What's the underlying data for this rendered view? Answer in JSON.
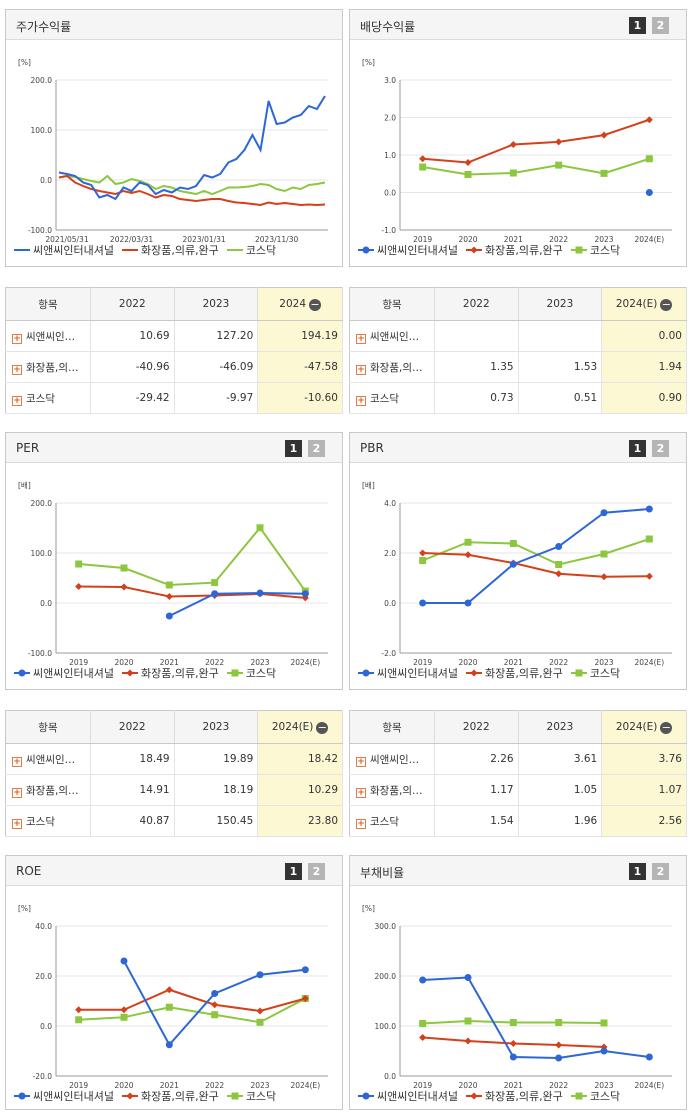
{
  "colors": {
    "c1": "#2d67d6",
    "c2": "#d4401a",
    "c3": "#8dc63f"
  },
  "legend": {
    "s1": "씨앤씨인터내셔널",
    "s2": "화장품,의류,완구",
    "s3": "코스닥"
  },
  "charts": {
    "stock": {
      "title": "주가수익률",
      "unit": "[%]",
      "chart_data": {
        "type": "line",
        "title": "주가수익률",
        "ylim": [
          -100,
          200
        ],
        "yticks": [
          "200.0",
          "100.0",
          "0.0",
          "-100.0"
        ],
        "xticks": [
          "2021/05/31",
          "2022/03/31",
          "2023/01/31",
          "2023/11/30"
        ],
        "series": [
          {
            "name": "씨앤씨인터내셔널",
            "values": [
              15,
              12,
              8,
              -5,
              -10,
              -35,
              -30,
              -38,
              -15,
              -22,
              -5,
              -10,
              -28,
              -20,
              -25,
              -15,
              -18,
              -12,
              10,
              5,
              12,
              35,
              42,
              60,
              90,
              60,
              158,
              112,
              115,
              125,
              130,
              148,
              142,
              168
            ]
          },
          {
            "name": "화장품,의류,완구",
            "values": [
              5,
              8,
              -5,
              -12,
              -18,
              -22,
              -25,
              -28,
              -22,
              -26,
              -22,
              -28,
              -35,
              -30,
              -32,
              -38,
              -40,
              -42,
              -40,
              -38,
              -38,
              -42,
              -45,
              -46,
              -48,
              -50,
              -45,
              -48,
              -46,
              -48,
              -50,
              -49,
              -50,
              -49
            ]
          },
          {
            "name": "코스닥",
            "values": [
              5,
              8,
              6,
              2,
              -2,
              -5,
              8,
              -8,
              -5,
              2,
              -2,
              -8,
              -18,
              -12,
              -15,
              -22,
              -25,
              -28,
              -22,
              -28,
              -22,
              -15,
              -15,
              -14,
              -12,
              -8,
              -10,
              -18,
              -22,
              -15,
              -18,
              -10,
              -8,
              -5
            ]
          }
        ]
      }
    },
    "dividend": {
      "title": "배당수익률",
      "unit": "[%]",
      "pages": [
        "1",
        "2"
      ],
      "chart_data": {
        "type": "line",
        "title": "배당수익률",
        "categories": [
          "2019",
          "2020",
          "2021",
          "2022",
          "2023",
          "2024(E)"
        ],
        "ylim": [
          -1.0,
          3.0
        ],
        "yticks": [
          "3.0",
          "2.0",
          "1.0",
          "0.0",
          "-1.0"
        ],
        "series": [
          {
            "name": "씨앤씨인터내셔널",
            "values": [
              null,
              null,
              null,
              null,
              null,
              0.0
            ]
          },
          {
            "name": "화장품,의류,완구",
            "values": [
              0.9,
              0.8,
              1.28,
              1.35,
              1.53,
              1.94
            ]
          },
          {
            "name": "코스닥",
            "values": [
              0.68,
              0.48,
              0.52,
              0.73,
              0.51,
              0.9
            ]
          }
        ]
      }
    },
    "per": {
      "title": "PER",
      "unit": "[배]",
      "pages": [
        "1",
        "2"
      ],
      "chart_data": {
        "type": "line",
        "title": "PER",
        "categories": [
          "2019",
          "2020",
          "2021",
          "2022",
          "2023",
          "2024(E)"
        ],
        "ylim": [
          -100,
          200
        ],
        "yticks": [
          "200.0",
          "100.0",
          "0.0",
          "-100.0"
        ],
        "series": [
          {
            "name": "씨앤씨인터내셔널",
            "values": [
              null,
              null,
              -26,
              18.49,
              19.89,
              18.42
            ]
          },
          {
            "name": "화장품,의류,완구",
            "values": [
              33,
              32,
              13,
              14.91,
              18.19,
              10.29
            ]
          },
          {
            "name": "코스닥",
            "values": [
              78,
              70,
              36,
              40.87,
              150.45,
              23.8
            ]
          }
        ]
      }
    },
    "pbr": {
      "title": "PBR",
      "unit": "[배]",
      "pages": [
        "1",
        "2"
      ],
      "chart_data": {
        "type": "line",
        "title": "PBR",
        "categories": [
          "2019",
          "2020",
          "2021",
          "2022",
          "2023",
          "2024(E)"
        ],
        "ylim": [
          -2.0,
          4.0
        ],
        "yticks": [
          "4.0",
          "2.0",
          "0.0",
          "-2.0"
        ],
        "series": [
          {
            "name": "씨앤씨인터내셔널",
            "values": [
              0.0,
              0.0,
              1.55,
              2.26,
              3.61,
              3.76
            ]
          },
          {
            "name": "화장품,의류,완구",
            "values": [
              2.0,
              1.93,
              1.6,
              1.17,
              1.05,
              1.07
            ]
          },
          {
            "name": "코스닥",
            "values": [
              1.7,
              2.43,
              2.38,
              1.54,
              1.96,
              2.56
            ]
          }
        ]
      }
    },
    "roe": {
      "title": "ROE",
      "unit": "[%]",
      "pages": [
        "1",
        "2"
      ],
      "chart_data": {
        "type": "line",
        "title": "ROE",
        "categories": [
          "2019",
          "2020",
          "2021",
          "2022",
          "2023",
          "2024(E)"
        ],
        "ylim": [
          -20,
          40
        ],
        "yticks": [
          "40.0",
          "20.0",
          "0.0",
          "-20.0"
        ],
        "series": [
          {
            "name": "씨앤씨인터내셔널",
            "values": [
              null,
              26,
              -7.5,
              13,
              20.5,
              22.5
            ]
          },
          {
            "name": "화장품,의류,완구",
            "values": [
              6.5,
              6.5,
              14.5,
              8.5,
              6.0,
              11.0
            ]
          },
          {
            "name": "코스닥",
            "values": [
              2.5,
              3.5,
              7.5,
              4.5,
              1.5,
              11.0
            ]
          }
        ]
      }
    },
    "debt": {
      "title": "부채비율",
      "unit": "[%]",
      "pages": [
        "1",
        "2"
      ],
      "chart_data": {
        "type": "line",
        "title": "부채비율",
        "categories": [
          "2019",
          "2020",
          "2021",
          "2022",
          "2023",
          "2024(E)"
        ],
        "ylim": [
          0,
          300
        ],
        "yticks": [
          "300.0",
          "200.0",
          "100.0",
          "0.0"
        ],
        "series": [
          {
            "name": "씨앤씨인터내셔널",
            "values": [
              192,
              197,
              38,
              36,
              50,
              38
            ]
          },
          {
            "name": "화장품,의류,완구",
            "values": [
              77,
              70,
              65,
              62,
              58,
              null
            ]
          },
          {
            "name": "코스닥",
            "values": [
              105,
              110,
              107,
              107,
              106,
              null
            ]
          }
        ]
      }
    }
  },
  "tables": {
    "stock": {
      "header": [
        "항목",
        "2022",
        "2023",
        "2024"
      ],
      "rows": [
        {
          "name": "씨앤씨인…",
          "vals": [
            "10.69",
            "127.20",
            "194.19"
          ]
        },
        {
          "name": "화장품,의…",
          "vals": [
            "-40.96",
            "-46.09",
            "-47.58"
          ]
        },
        {
          "name": "코스닥",
          "vals": [
            "-29.42",
            "-9.97",
            "-10.60"
          ]
        }
      ]
    },
    "dividend": {
      "header": [
        "항목",
        "2022",
        "2023",
        "2024(E)"
      ],
      "rows": [
        {
          "name": "씨앤씨인…",
          "vals": [
            "",
            "",
            "0.00"
          ]
        },
        {
          "name": "화장품,의…",
          "vals": [
            "1.35",
            "1.53",
            "1.94"
          ]
        },
        {
          "name": "코스닥",
          "vals": [
            "0.73",
            "0.51",
            "0.90"
          ]
        }
      ]
    },
    "per": {
      "header": [
        "항목",
        "2022",
        "2023",
        "2024(E)"
      ],
      "rows": [
        {
          "name": "씨앤씨인…",
          "vals": [
            "18.49",
            "19.89",
            "18.42"
          ]
        },
        {
          "name": "화장품,의…",
          "vals": [
            "14.91",
            "18.19",
            "10.29"
          ]
        },
        {
          "name": "코스닥",
          "vals": [
            "40.87",
            "150.45",
            "23.80"
          ]
        }
      ]
    },
    "pbr": {
      "header": [
        "항목",
        "2022",
        "2023",
        "2024(E)"
      ],
      "rows": [
        {
          "name": "씨앤씨인…",
          "vals": [
            "2.26",
            "3.61",
            "3.76"
          ]
        },
        {
          "name": "화장품,의…",
          "vals": [
            "1.17",
            "1.05",
            "1.07"
          ]
        },
        {
          "name": "코스닥",
          "vals": [
            "1.54",
            "1.96",
            "2.56"
          ]
        }
      ]
    }
  }
}
